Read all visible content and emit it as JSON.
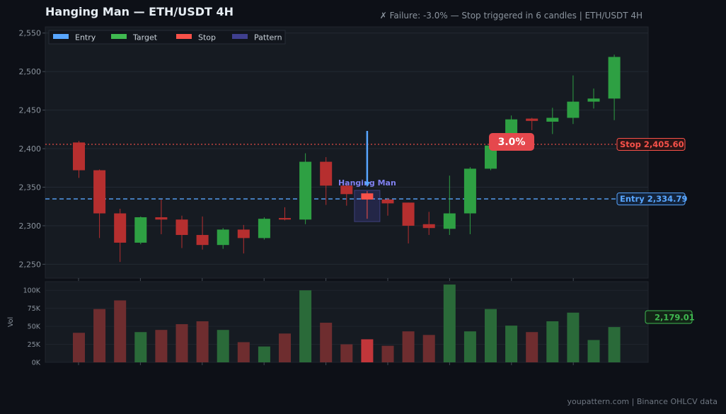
{
  "header": {
    "title": "Hanging Man  —  ETH/USDT 4H",
    "status": "✗ Failure: -3.0% — Stop triggered in 6 candles  |  ETH/USDT 4H"
  },
  "footer": {
    "credit": "youpattern.com  |  Binance OHLCV data"
  },
  "colors": {
    "background": "#0d1017",
    "panel": "#161b22",
    "bull": "#2ea043",
    "bear": "#b62f2f",
    "entry": "#58a6ff",
    "target": "#3fb950",
    "stop": "#f85149",
    "pattern": "#3f3f8f",
    "pattern_label": "#8080f0"
  },
  "chart_data": [
    {
      "type": "candlestick",
      "title": "Hanging Man  —  ETH/USDT 4H",
      "ylim": [
        2232,
        2558
      ],
      "yticks": [
        2250,
        2300,
        2350,
        2400,
        2450,
        2500,
        2550
      ],
      "ytick_labels": [
        "2,250",
        "2,300",
        "2,350",
        "2,400",
        "2,450",
        "2,500",
        "2,550"
      ],
      "grid": true,
      "legend": {
        "placement": "top-left",
        "entries": [
          {
            "label": "Entry",
            "color": "#58a6ff"
          },
          {
            "label": "Target",
            "color": "#3fb950"
          },
          {
            "label": "Stop",
            "color": "#f85149"
          },
          {
            "label": "Pattern",
            "color": "#3f3f8f"
          }
        ]
      },
      "candles": [
        {
          "o": 2408,
          "h": 2410,
          "l": 2362,
          "c": 2372
        },
        {
          "o": 2372,
          "h": 2373,
          "l": 2284,
          "c": 2316
        },
        {
          "o": 2316,
          "h": 2322,
          "l": 2253,
          "c": 2278
        },
        {
          "o": 2278,
          "h": 2312,
          "l": 2276,
          "c": 2311
        },
        {
          "o": 2311,
          "h": 2334,
          "l": 2289,
          "c": 2308
        },
        {
          "o": 2308,
          "h": 2313,
          "l": 2271,
          "c": 2288
        },
        {
          "o": 2288,
          "h": 2312,
          "l": 2269,
          "c": 2275
        },
        {
          "o": 2275,
          "h": 2297,
          "l": 2270,
          "c": 2295
        },
        {
          "o": 2295,
          "h": 2301,
          "l": 2264,
          "c": 2284
        },
        {
          "o": 2284,
          "h": 2311,
          "l": 2282,
          "c": 2309
        },
        {
          "o": 2310,
          "h": 2324,
          "l": 2307,
          "c": 2308
        },
        {
          "o": 2308,
          "h": 2394,
          "l": 2302,
          "c": 2383
        },
        {
          "o": 2383,
          "h": 2389,
          "l": 2327,
          "c": 2352
        },
        {
          "o": 2352,
          "h": 2356,
          "l": 2326,
          "c": 2341
        },
        {
          "o": 2342,
          "h": 2345,
          "l": 2309,
          "c": 2334
        },
        {
          "o": 2334,
          "h": 2336,
          "l": 2313,
          "c": 2329
        },
        {
          "o": 2330,
          "h": 2330,
          "l": 2277,
          "c": 2300
        },
        {
          "o": 2302,
          "h": 2318,
          "l": 2288,
          "c": 2297
        },
        {
          "o": 2296,
          "h": 2365,
          "l": 2288,
          "c": 2316
        },
        {
          "o": 2316,
          "h": 2376,
          "l": 2289,
          "c": 2374
        },
        {
          "o": 2374,
          "h": 2405,
          "l": 2372,
          "c": 2404
        },
        {
          "o": 2404,
          "h": 2443,
          "l": 2402,
          "c": 2438
        },
        {
          "o": 2439,
          "h": 2440,
          "l": 2424,
          "c": 2436
        },
        {
          "o": 2435,
          "h": 2453,
          "l": 2419,
          "c": 2440
        },
        {
          "o": 2440,
          "h": 2495,
          "l": 2432,
          "c": 2461
        },
        {
          "o": 2461,
          "h": 2478,
          "l": 2452,
          "c": 2465
        },
        {
          "o": 2465,
          "h": 2522,
          "l": 2437,
          "c": 2519
        }
      ],
      "entry": {
        "label": "Entry",
        "value": 2334.79,
        "value_label": "2,334.79"
      },
      "stop": {
        "label": "Stop",
        "value": 2405.6,
        "value_label": "2,405.60"
      },
      "pattern": {
        "label": "Hanging Man",
        "candle_index": 14
      },
      "annotation": {
        "text": "3.0%"
      }
    },
    {
      "type": "bar",
      "ylabel": "Vol",
      "ylim": [
        0,
        112000
      ],
      "yticks": [
        0,
        25000,
        50000,
        75000,
        100000
      ],
      "ytick_labels": [
        "0K",
        "25K",
        "50K",
        "75K",
        "100K"
      ],
      "values": [
        41000,
        74000,
        86000,
        42000,
        45000,
        53000,
        57000,
        45000,
        28000,
        22000,
        40000,
        100000,
        55000,
        25000,
        32000,
        23000,
        43000,
        38000,
        108000,
        43000,
        74000,
        51000,
        42000,
        57000,
        69000,
        31000,
        49000
      ],
      "target": {
        "label": "Target",
        "value_label": "2,179.01"
      }
    }
  ]
}
